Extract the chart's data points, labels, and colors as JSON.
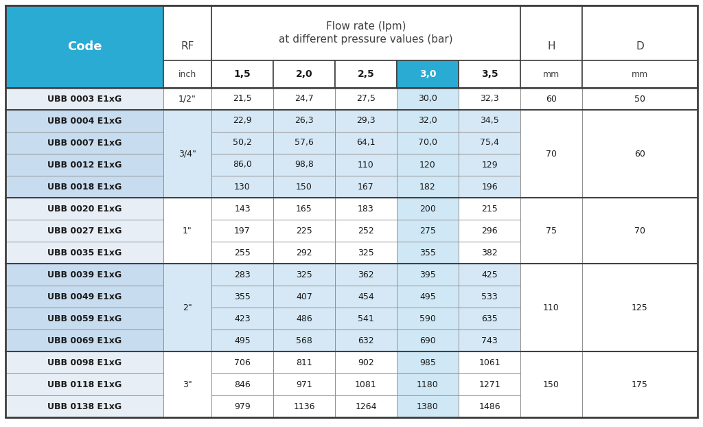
{
  "groups": [
    {
      "codes": [
        "UBB 0003 E1xG"
      ],
      "rf": "1/2\"",
      "values": [
        [
          "21,5",
          "24,7",
          "27,5",
          "30,0",
          "32,3"
        ]
      ],
      "H": "60",
      "D": "50",
      "bg": "white"
    },
    {
      "codes": [
        "UBB 0004 E1xG",
        "UBB 0007 E1xG",
        "UBB 0012 E1xG",
        "UBB 0018 E1xG"
      ],
      "rf": "3/4\"",
      "values": [
        [
          "22,9",
          "26,3",
          "29,3",
          "32,0",
          "34,5"
        ],
        [
          "50,2",
          "57,6",
          "64,1",
          "70,0",
          "75,4"
        ],
        [
          "86,0",
          "98,8",
          "110",
          "120",
          "129"
        ],
        [
          "130",
          "150",
          "167",
          "182",
          "196"
        ]
      ],
      "H": "70",
      "D": "60",
      "bg": "blue"
    },
    {
      "codes": [
        "UBB 0020 E1xG",
        "UBB 0027 E1xG",
        "UBB 0035 E1xG"
      ],
      "rf": "1\"",
      "values": [
        [
          "143",
          "165",
          "183",
          "200",
          "215"
        ],
        [
          "197",
          "225",
          "252",
          "275",
          "296"
        ],
        [
          "255",
          "292",
          "325",
          "355",
          "382"
        ]
      ],
      "H": "75",
      "D": "70",
      "bg": "white"
    },
    {
      "codes": [
        "UBB 0039 E1xG",
        "UBB 0049 E1xG",
        "UBB 0059 E1xG",
        "UBB 0069 E1xG"
      ],
      "rf": "2\"",
      "values": [
        [
          "283",
          "325",
          "362",
          "395",
          "425"
        ],
        [
          "355",
          "407",
          "454",
          "495",
          "533"
        ],
        [
          "423",
          "486",
          "541",
          "590",
          "635"
        ],
        [
          "495",
          "568",
          "632",
          "690",
          "743"
        ]
      ],
      "H": "110",
      "D": "125",
      "bg": "blue"
    },
    {
      "codes": [
        "UBB 0098 E1xG",
        "UBB 0118 E1xG",
        "UBB 0138 E1xG"
      ],
      "rf": "3\"",
      "values": [
        [
          "706",
          "811",
          "902",
          "985",
          "1061"
        ],
        [
          "846",
          "971",
          "1081",
          "1180",
          "1271"
        ],
        [
          "979",
          "1136",
          "1264",
          "1380",
          "1486"
        ]
      ],
      "H": "150",
      "D": "175",
      "bg": "white"
    }
  ],
  "pressure_labels": [
    "1,5",
    "2,0",
    "2,5",
    "3,0",
    "3,5"
  ],
  "teal_color": "#29ABD4",
  "code_col_white_bg": "#E8EEF5",
  "code_col_blue_bg": "#C8DCF0",
  "data_white_bg": "#FFFFFF",
  "data_blue_bg": "#D6E8F5",
  "col30_header_bg": "#29ABD4",
  "col30_data_bg": "#D0E8F5",
  "col30_white_data_bg": "#D8EEF8",
  "thick_border": "#404040",
  "thin_border": "#909090",
  "header_bg": "#FFFFFF"
}
